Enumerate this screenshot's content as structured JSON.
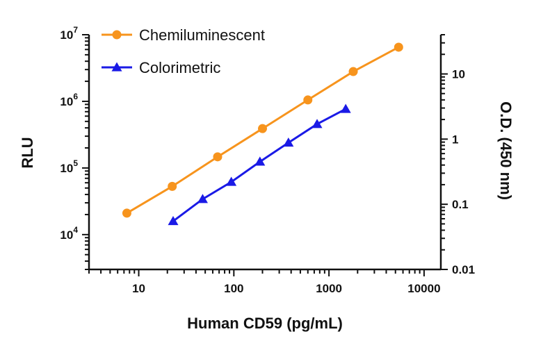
{
  "chart_data": {
    "type": "line",
    "xlabel": "Human CD59 (pg/mL)",
    "ylabel": "RLU",
    "y2label": "O.D. (450 nm)",
    "x_scale": "log",
    "y_scale": "log",
    "y2_scale": "log",
    "xlim": [
      3,
      15000
    ],
    "ylim": [
      3000,
      10000000
    ],
    "y2lim": [
      0.01,
      40
    ],
    "x_ticks": [
      10,
      100,
      1000,
      10000
    ],
    "x_tick_labels": [
      "10",
      "100",
      "1000",
      "10000"
    ],
    "y_ticks": [
      10000,
      100000,
      1000000,
      10000000
    ],
    "y_tick_labels": [
      {
        "base": "10",
        "exp": "4"
      },
      {
        "base": "10",
        "exp": "5"
      },
      {
        "base": "10",
        "exp": "6"
      },
      {
        "base": "10",
        "exp": "7"
      }
    ],
    "y2_ticks": [
      0.01,
      0.1,
      1,
      10
    ],
    "y2_tick_labels": [
      "0.01",
      "0.1",
      "1",
      "10"
    ],
    "grid": false,
    "legend_position": "top-left",
    "series": [
      {
        "name": "Chemiluminescent",
        "axis": "left",
        "color": "#F7941D",
        "marker": "circle",
        "x": [
          7.5,
          22.5,
          67.5,
          200,
          600,
          1800,
          5400
        ],
        "y": [
          21000,
          53000,
          147000,
          390000,
          1050000,
          2800000,
          6500000
        ]
      },
      {
        "name": "Colorimetric",
        "axis": "right",
        "color": "#1A1AE6",
        "marker": "triangle",
        "x": [
          23,
          47,
          94,
          188,
          375,
          750,
          1500
        ],
        "y": [
          0.055,
          0.12,
          0.22,
          0.45,
          0.88,
          1.7,
          2.9
        ]
      }
    ]
  }
}
